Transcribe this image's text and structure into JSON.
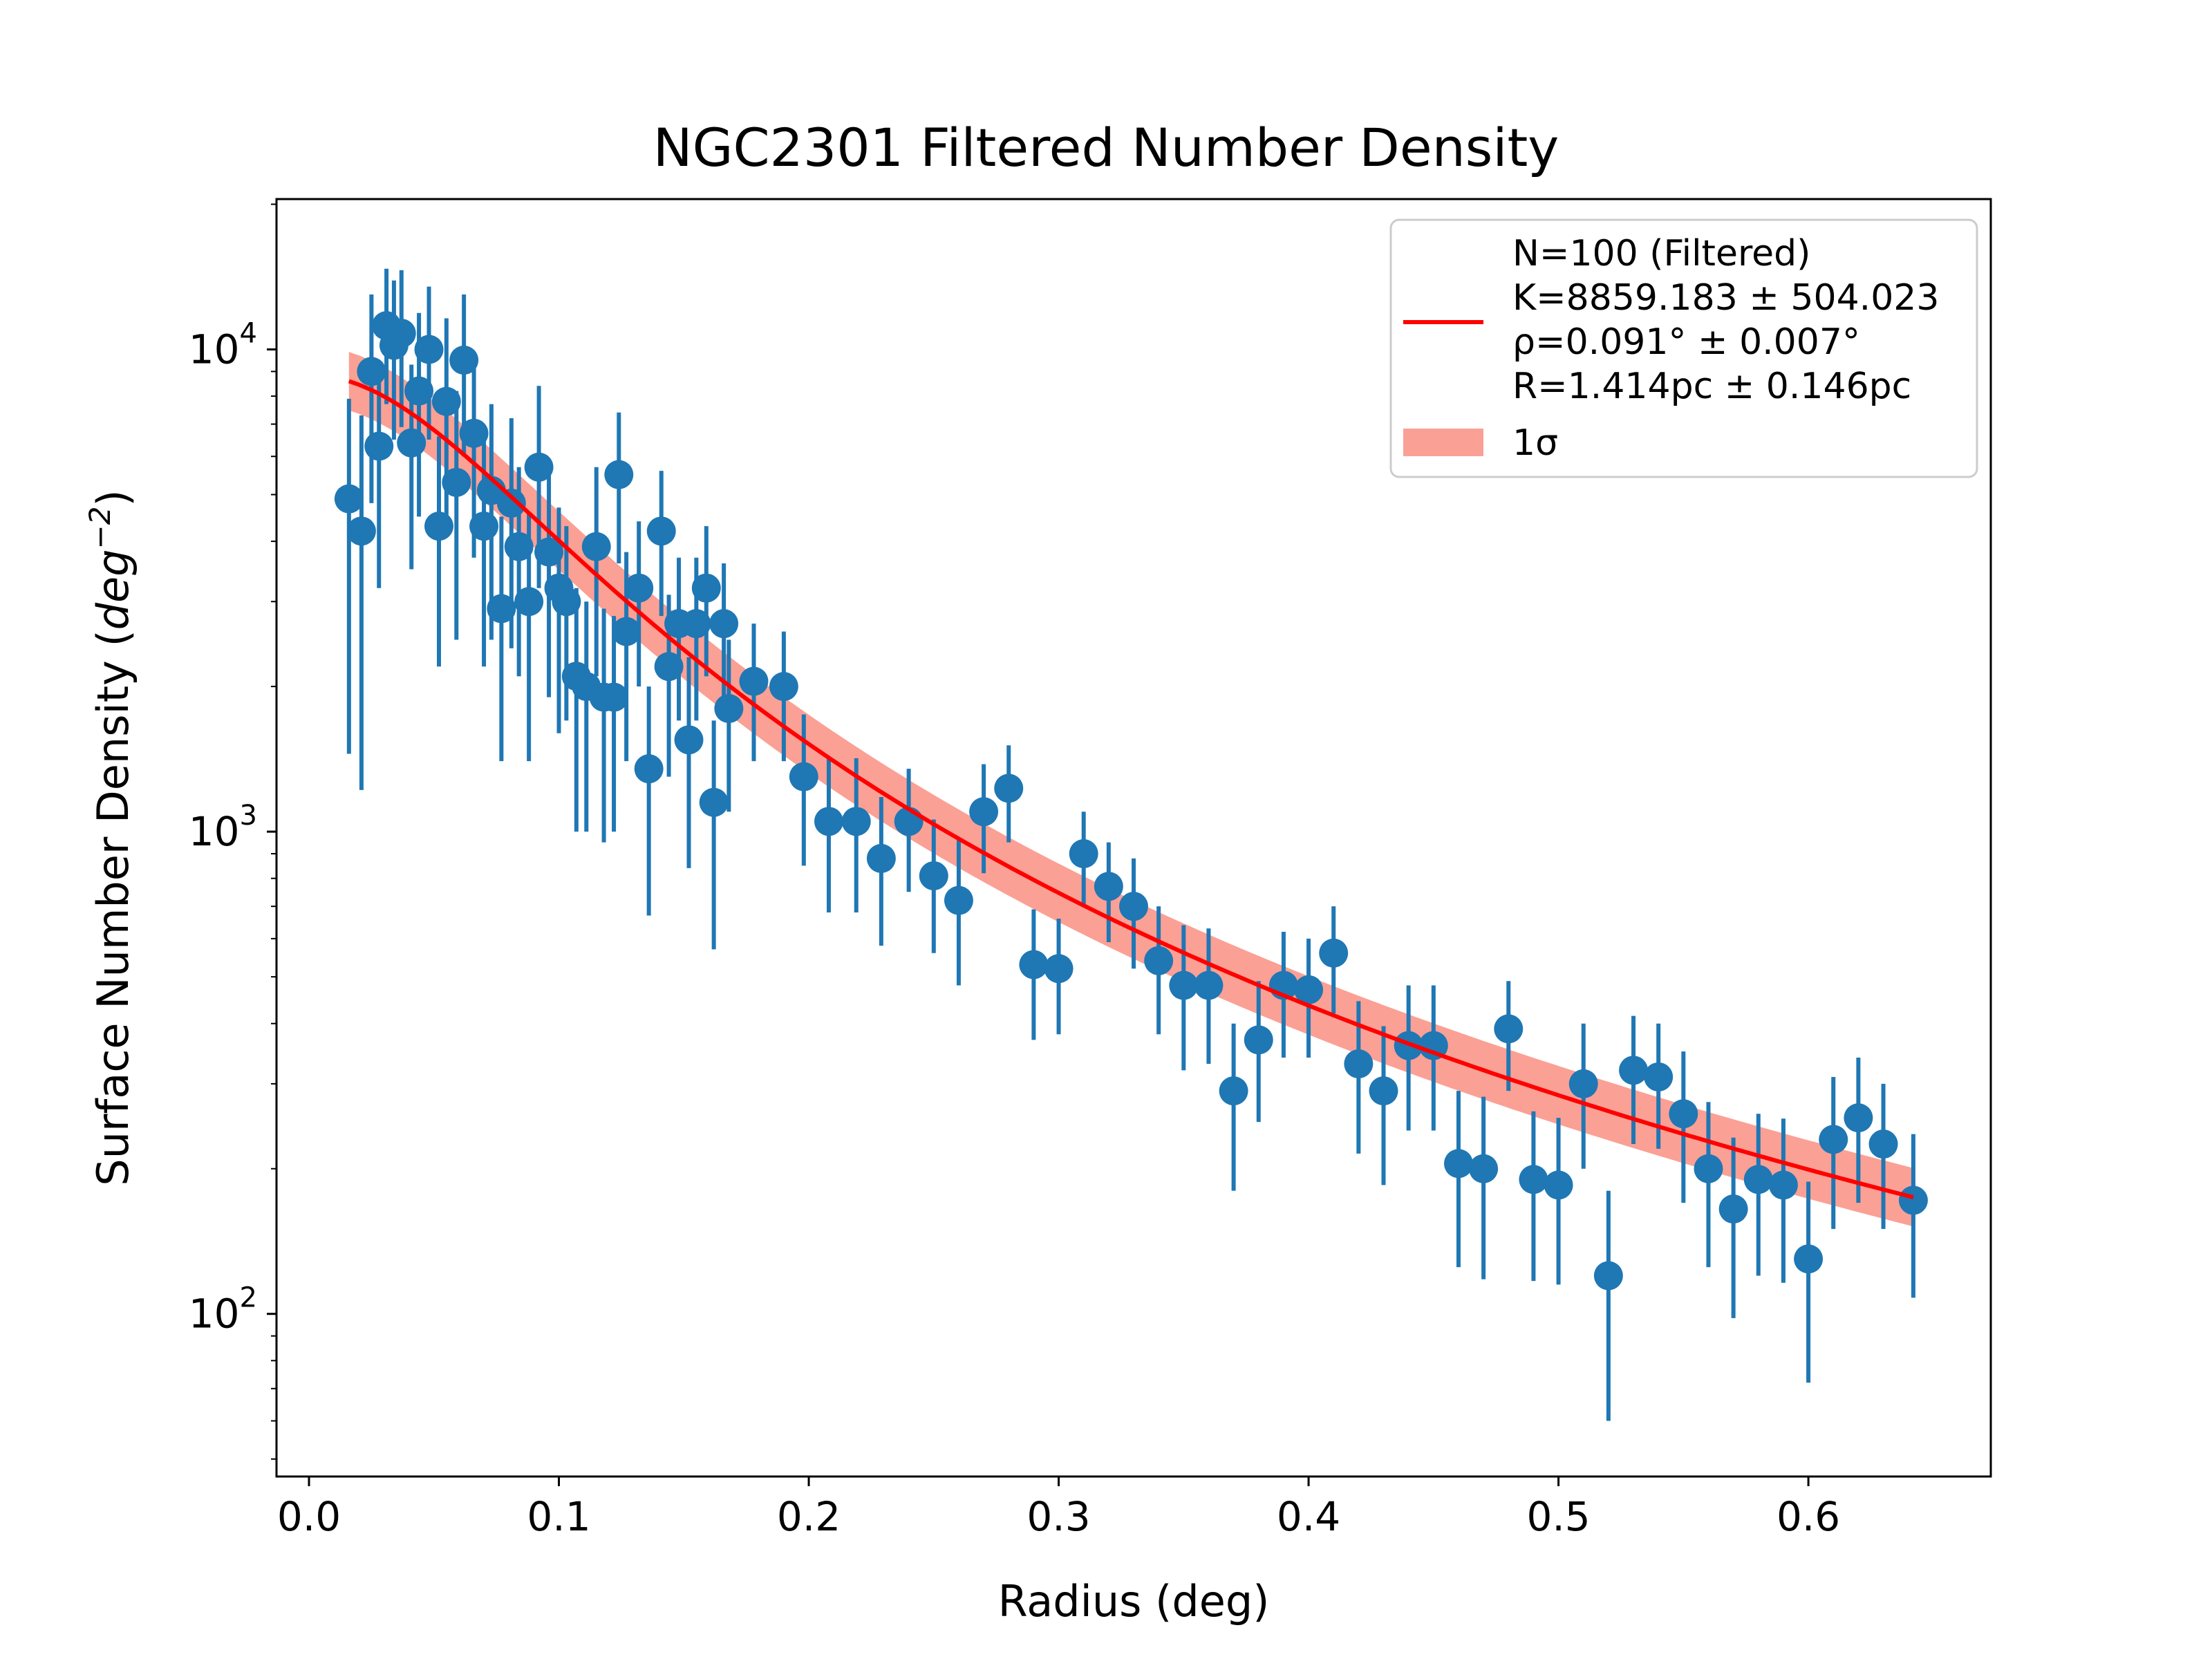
{
  "chart_data": {
    "type": "scatter",
    "title": "NGC2301 Filtered Number Density",
    "xlabel": "Radius (deg)",
    "ylabel_main": "Surface Number Density (",
    "ylabel_unit": "deg",
    "ylabel_exp": "−2",
    "ylabel_close": ")",
    "xscale": "linear",
    "yscale": "log",
    "xlim": [
      -0.013,
      0.673
    ],
    "ylim": [
      46,
      20500
    ],
    "grid": false,
    "legend_position": "top-right",
    "x_ticks": [
      {
        "value": 0.0,
        "label": "0.0"
      },
      {
        "value": 0.1,
        "label": "0.1"
      },
      {
        "value": 0.2,
        "label": "0.2"
      },
      {
        "value": 0.3,
        "label": "0.3"
      },
      {
        "value": 0.4,
        "label": "0.4"
      },
      {
        "value": 0.5,
        "label": "0.5"
      },
      {
        "value": 0.6,
        "label": "0.6"
      }
    ],
    "y_ticks": [
      {
        "value": 100,
        "base": "10",
        "exp": "2"
      },
      {
        "value": 1000,
        "base": "10",
        "exp": "3"
      },
      {
        "value": 10000,
        "base": "10",
        "exp": "4"
      }
    ],
    "legend": {
      "line_lines": [
        "N=100 (Filtered)",
        "K=8859.183 ± 504.023",
        "ρ=0.091° ± 0.007°",
        "R=1.414pc ± 0.146pc"
      ],
      "band_label": "1σ"
    },
    "colors": {
      "points": "#1f77b4",
      "fit": "#ff0000",
      "band": "#fa8072"
    },
    "points": {
      "name": "data",
      "x": [
        0.016,
        0.021,
        0.025,
        0.028,
        0.031,
        0.034,
        0.037,
        0.041,
        0.044,
        0.048,
        0.052,
        0.055,
        0.059,
        0.062,
        0.066,
        0.07,
        0.073,
        0.077,
        0.081,
        0.084,
        0.088,
        0.092,
        0.096,
        0.1,
        0.103,
        0.107,
        0.111,
        0.115,
        0.118,
        0.122,
        0.124,
        0.127,
        0.132,
        0.136,
        0.141,
        0.144,
        0.148,
        0.152,
        0.155,
        0.159,
        0.162,
        0.166,
        0.168,
        0.178,
        0.19,
        0.198,
        0.208,
        0.219,
        0.229,
        0.24,
        0.25,
        0.26,
        0.27,
        0.28,
        0.29,
        0.3,
        0.31,
        0.32,
        0.33,
        0.34,
        0.35,
        0.36,
        0.37,
        0.38,
        0.39,
        0.4,
        0.41,
        0.42,
        0.43,
        0.44,
        0.45,
        0.46,
        0.47,
        0.48,
        0.49,
        0.5,
        0.51,
        0.52,
        0.53,
        0.54,
        0.55,
        0.56,
        0.57,
        0.58,
        0.59,
        0.6,
        0.61,
        0.62,
        0.63,
        0.642
      ],
      "y": [
        4900,
        4200,
        9000,
        6300,
        11200,
        10200,
        10800,
        6400,
        8200,
        10000,
        4300,
        7800,
        5300,
        9500,
        6700,
        4300,
        5100,
        2900,
        4800,
        3900,
        3000,
        5700,
        3800,
        3200,
        3000,
        2100,
        2000,
        3900,
        1900,
        1900,
        5500,
        2600,
        3200,
        1350,
        4200,
        2200,
        2700,
        1550,
        2700,
        3200,
        1150,
        2700,
        1800,
        2050,
        2000,
        1300,
        1050,
        1050,
        880,
        1050,
        810,
        720,
        1100,
        1230,
        530,
        520,
        900,
        770,
        700,
        540,
        480,
        480,
        290,
        370,
        480,
        470,
        560,
        330,
        290,
        360,
        360,
        205,
        200,
        390,
        190,
        185,
        300,
        120,
        320,
        310,
        260,
        200,
        165,
        190,
        185,
        130,
        230,
        255,
        225,
        172
      ],
      "y_lower": [
        1450,
        1220,
        4800,
        3200,
        7700,
        6500,
        6900,
        3500,
        4500,
        6500,
        2200,
        4200,
        2500,
        6000,
        3700,
        2200,
        2500,
        1400,
        2400,
        2100,
        1400,
        3200,
        1900,
        1600,
        1700,
        1000,
        1000,
        2100,
        950,
        1000,
        3600,
        1400,
        2000,
        670,
        2800,
        1300,
        1700,
        840,
        1700,
        2100,
        570,
        1800,
        1100,
        1400,
        1400,
        850,
        680,
        680,
        580,
        750,
        560,
        480,
        820,
        950,
        370,
        380,
        700,
        590,
        520,
        380,
        320,
        330,
        180,
        250,
        340,
        340,
        420,
        215,
        185,
        240,
        240,
        125,
        118,
        290,
        117,
        115,
        200,
        60,
        225,
        220,
        170,
        125,
        98,
        120,
        116,
        72,
        150,
        170,
        150,
        108
      ],
      "y_upper": [
        7900,
        7300,
        13000,
        9400,
        14700,
        13900,
        14600,
        9300,
        11900,
        13500,
        6600,
        11600,
        8200,
        13000,
        9700,
        6500,
        7700,
        4500,
        7200,
        5700,
        4600,
        8400,
        5700,
        4700,
        4300,
        3200,
        3000,
        5700,
        2900,
        2800,
        7400,
        3800,
        4400,
        2000,
        5600,
        3100,
        3700,
        2300,
        3700,
        4300,
        1700,
        3600,
        2500,
        2700,
        2600,
        1750,
        1420,
        1420,
        1180,
        1350,
        1060,
        960,
        1380,
        1510,
        690,
        660,
        1100,
        950,
        880,
        700,
        640,
        630,
        400,
        490,
        620,
        600,
        700,
        445,
        395,
        480,
        480,
        290,
        282,
        490,
        263,
        255,
        400,
        180,
        415,
        400,
        350,
        275,
        232,
        260,
        254,
        188,
        310,
        340,
        300,
        236
      ]
    },
    "fit_curve": {
      "name": "fit",
      "K": 8859.183,
      "rho_deg": 0.091,
      "x_min": 0.016,
      "x_max": 0.642,
      "band_lower_factor": 0.87,
      "band_upper_factor": 1.15
    }
  }
}
